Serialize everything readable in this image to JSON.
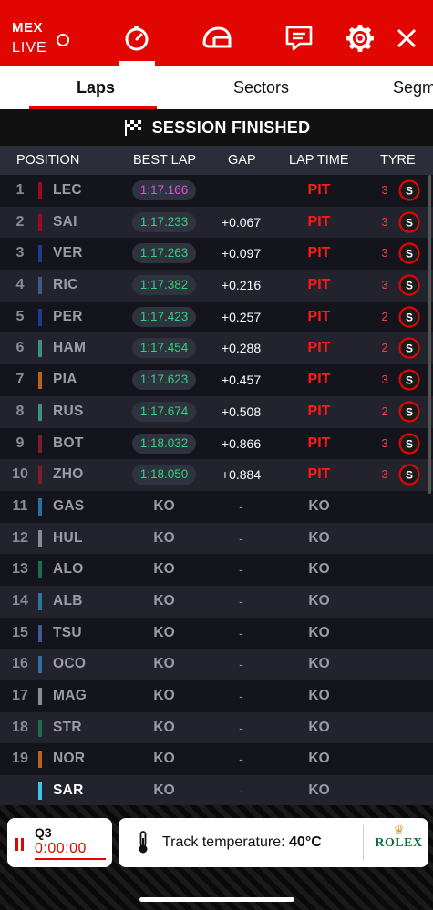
{
  "header": {
    "event_code": "MEX",
    "live_label": "LIVE"
  },
  "tabs": [
    {
      "label": "Laps",
      "active": true
    },
    {
      "label": "Sectors",
      "active": false
    },
    {
      "label": "Segm",
      "active": false
    }
  ],
  "session": {
    "status": "SESSION FINISHED"
  },
  "table": {
    "columns": [
      "POSITION",
      "BEST LAP",
      "GAP",
      "LAP TIME",
      "TYRE"
    ],
    "rows": [
      {
        "pos": "1",
        "driver": "LEC",
        "team_color": "#9b0a20",
        "best_lap": "1:17.166",
        "best_lap_type": "purple",
        "gap": "",
        "lap_time": "PIT",
        "tyre_age": "3",
        "tyre": "S"
      },
      {
        "pos": "2",
        "driver": "SAI",
        "team_color": "#9b0a20",
        "best_lap": "1:17.233",
        "best_lap_type": "green",
        "gap": "+0.067",
        "lap_time": "PIT",
        "tyre_age": "3",
        "tyre": "S"
      },
      {
        "pos": "3",
        "driver": "VER",
        "team_color": "#1e3d8f",
        "best_lap": "1:17.263",
        "best_lap_type": "green",
        "gap": "+0.097",
        "lap_time": "PIT",
        "tyre_age": "3",
        "tyre": "S"
      },
      {
        "pos": "4",
        "driver": "RIC",
        "team_color": "#3f5a8c",
        "best_lap": "1:17.382",
        "best_lap_type": "green",
        "gap": "+0.216",
        "lap_time": "PIT",
        "tyre_age": "3",
        "tyre": "S"
      },
      {
        "pos": "5",
        "driver": "PER",
        "team_color": "#1e3d8f",
        "best_lap": "1:17.423",
        "best_lap_type": "green",
        "gap": "+0.257",
        "lap_time": "PIT",
        "tyre_age": "2",
        "tyre": "S"
      },
      {
        "pos": "6",
        "driver": "HAM",
        "team_color": "#3d8f80",
        "best_lap": "1:17.454",
        "best_lap_type": "green",
        "gap": "+0.288",
        "lap_time": "PIT",
        "tyre_age": "2",
        "tyre": "S"
      },
      {
        "pos": "7",
        "driver": "PIA",
        "team_color": "#b8641c",
        "best_lap": "1:17.623",
        "best_lap_type": "green",
        "gap": "+0.457",
        "lap_time": "PIT",
        "tyre_age": "3",
        "tyre": "S"
      },
      {
        "pos": "8",
        "driver": "RUS",
        "team_color": "#3d8f80",
        "best_lap": "1:17.674",
        "best_lap_type": "green",
        "gap": "+0.508",
        "lap_time": "PIT",
        "tyre_age": "2",
        "tyre": "S"
      },
      {
        "pos": "9",
        "driver": "BOT",
        "team_color": "#7a1f2a",
        "best_lap": "1:18.032",
        "best_lap_type": "green",
        "gap": "+0.866",
        "lap_time": "PIT",
        "tyre_age": "3",
        "tyre": "S"
      },
      {
        "pos": "10",
        "driver": "ZHO",
        "team_color": "#7a1f2a",
        "best_lap": "1:18.050",
        "best_lap_type": "green",
        "gap": "+0.884",
        "lap_time": "PIT",
        "tyre_age": "3",
        "tyre": "S"
      },
      {
        "pos": "11",
        "driver": "GAS",
        "team_color": "#2f6fa0",
        "best_lap": "KO",
        "best_lap_type": "ko",
        "gap": "-",
        "lap_time": "KO"
      },
      {
        "pos": "12",
        "driver": "HUL",
        "team_color": "#8a8c94",
        "best_lap": "KO",
        "best_lap_type": "ko",
        "gap": "-",
        "lap_time": "KO"
      },
      {
        "pos": "13",
        "driver": "ALO",
        "team_color": "#1e6b4f",
        "best_lap": "KO",
        "best_lap_type": "ko",
        "gap": "-",
        "lap_time": "KO"
      },
      {
        "pos": "14",
        "driver": "ALB",
        "team_color": "#2a7a9c",
        "best_lap": "KO",
        "best_lap_type": "ko",
        "gap": "-",
        "lap_time": "KO"
      },
      {
        "pos": "15",
        "driver": "TSU",
        "team_color": "#3f5a8c",
        "best_lap": "KO",
        "best_lap_type": "ko",
        "gap": "-",
        "lap_time": "KO"
      },
      {
        "pos": "16",
        "driver": "OCO",
        "team_color": "#2f6fa0",
        "best_lap": "KO",
        "best_lap_type": "ko",
        "gap": "-",
        "lap_time": "KO"
      },
      {
        "pos": "17",
        "driver": "MAG",
        "team_color": "#8a8c94",
        "best_lap": "KO",
        "best_lap_type": "ko",
        "gap": "-",
        "lap_time": "KO"
      },
      {
        "pos": "18",
        "driver": "STR",
        "team_color": "#1e6b4f",
        "best_lap": "KO",
        "best_lap_type": "ko",
        "gap": "-",
        "lap_time": "KO"
      },
      {
        "pos": "19",
        "driver": "NOR",
        "team_color": "#b8641c",
        "best_lap": "KO",
        "best_lap_type": "ko",
        "gap": "-",
        "lap_time": "KO"
      },
      {
        "pos": "",
        "driver": "SAR",
        "team_color": "#3ec6e8",
        "best_lap": "KO",
        "best_lap_type": "ko",
        "gap": "-",
        "lap_time": "KO",
        "highlight": true
      }
    ]
  },
  "footer": {
    "session_name": "Q3",
    "timer": "0:00:00",
    "temperature_label": "Track temperature:",
    "temperature_value": "40°C",
    "sponsor": "ROLEX"
  },
  "colors": {
    "brand_red": "#e10600",
    "fastest_lap": "#e050e0",
    "personal_best": "#33d17a",
    "pit": "#ff1a1a"
  }
}
